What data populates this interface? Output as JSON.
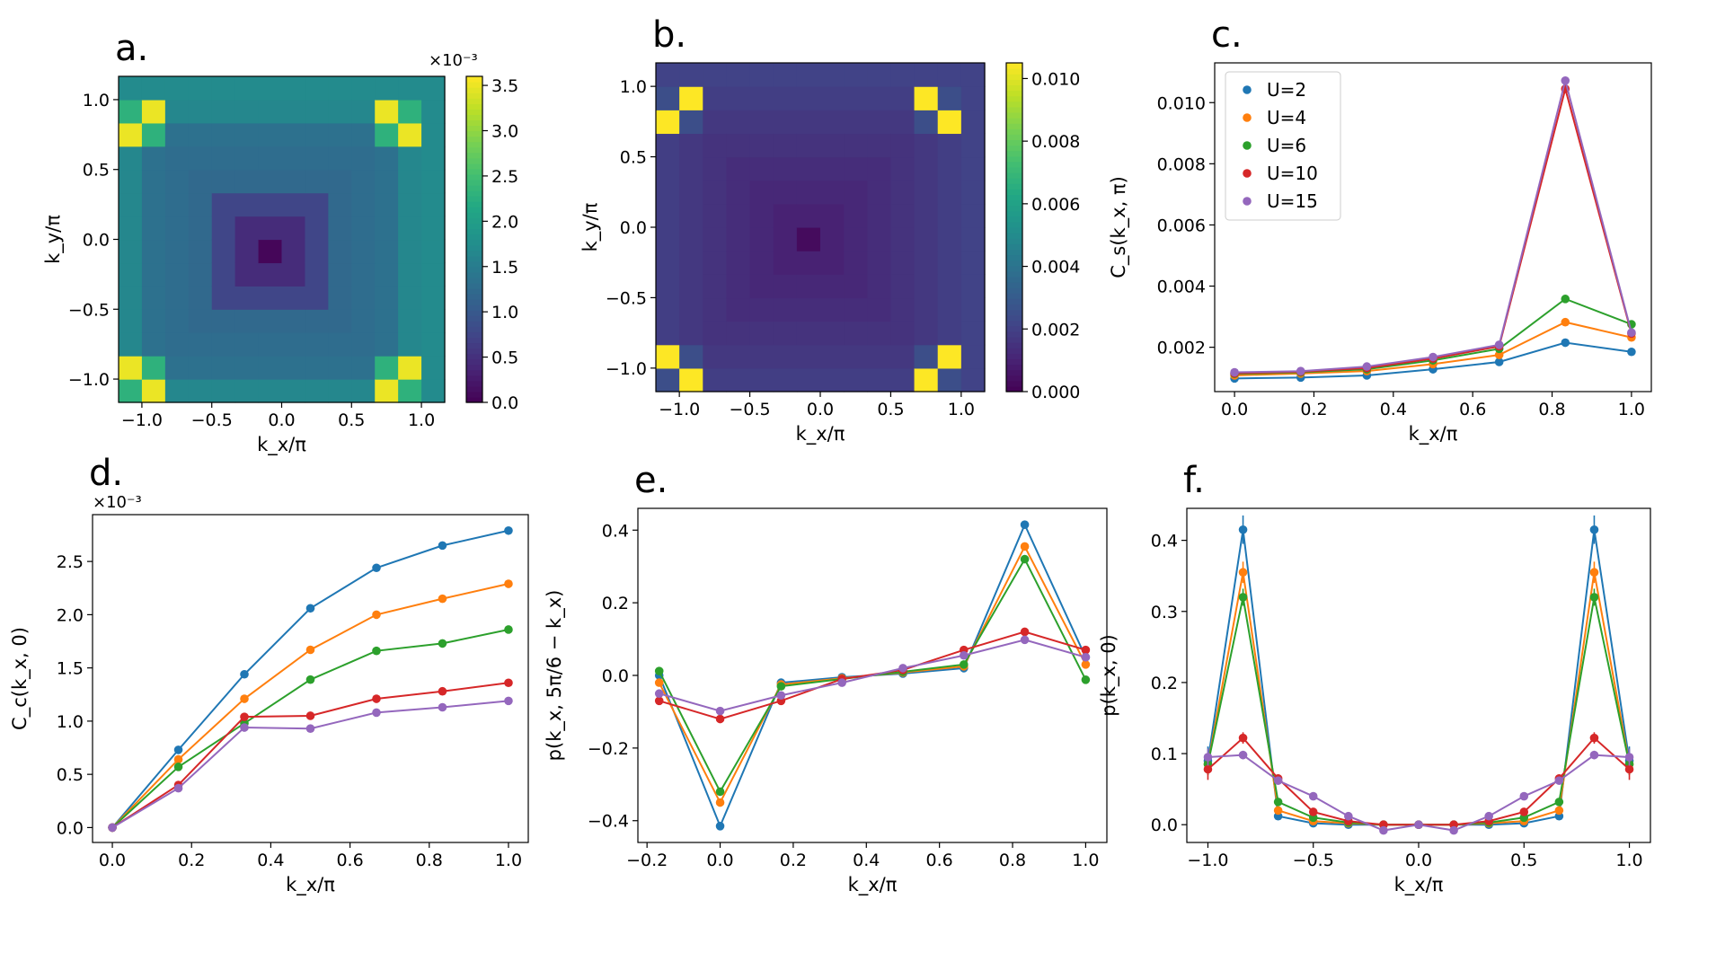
{
  "figure": {
    "background": "#ffffff",
    "series_colors": {
      "U=2": "#1f77b4",
      "U=4": "#ff7f0e",
      "U=6": "#2ca02c",
      "U=10": "#d62728",
      "U=15": "#9467bd"
    }
  },
  "chart_data": [
    {
      "id": "a",
      "type": "heatmap",
      "panel_label": "a.",
      "xlabel": "k_x/π",
      "ylabel": "k_y/π",
      "xticks": [
        "−1.0",
        "−0.5",
        "0.0",
        "0.5",
        "1.0"
      ],
      "yticks": [
        "−1.0",
        "−0.5",
        "0.0",
        "0.5",
        "1.0"
      ],
      "xlim": [
        -1.1667,
        1.1667
      ],
      "ylim": [
        -1.1667,
        1.1667
      ],
      "grid_cells": 14,
      "colorbar": {
        "exponent_label": "×10⁻³",
        "range": [
          0,
          3.6
        ],
        "ticks": [
          0.0,
          0.5,
          1.0,
          1.5,
          2.0,
          2.5,
          3.0,
          3.5
        ],
        "tick_labels": [
          "0.0",
          "0.5",
          "1.0",
          "1.5",
          "2.0",
          "2.5",
          "3.0",
          "3.5"
        ]
      },
      "model": "spin",
      "peak_value": 3.5
    },
    {
      "id": "b",
      "type": "heatmap",
      "panel_label": "b.",
      "xlabel": "k_x/π",
      "ylabel": "k_y/π",
      "xticks": [
        "−1.0",
        "−0.5",
        "0.0",
        "0.5",
        "1.0"
      ],
      "yticks": [
        "−1.0",
        "−0.5",
        "0.0",
        "0.5",
        "1.0"
      ],
      "xlim": [
        -1.1667,
        1.1667
      ],
      "ylim": [
        -1.1667,
        1.1667
      ],
      "grid_cells": 14,
      "colorbar": {
        "exponent_label": "",
        "range": [
          0,
          0.0105
        ],
        "ticks": [
          0.0,
          0.002,
          0.004,
          0.006,
          0.008,
          0.01
        ],
        "tick_labels": [
          "0.000",
          "0.002",
          "0.004",
          "0.006",
          "0.008",
          "0.010"
        ]
      },
      "model": "spin_sharp",
      "peak_value": 0.0105
    },
    {
      "id": "c",
      "type": "line",
      "panel_label": "c.",
      "xlabel": "k_x/π",
      "ylabel": "C_s(k_x, π)",
      "x": [
        0.0,
        0.1667,
        0.3333,
        0.5,
        0.6667,
        0.8333,
        1.0
      ],
      "xlim": [
        -0.05,
        1.05
      ],
      "ylim": [
        0.00055,
        0.0113
      ],
      "xticks": [
        0.0,
        0.2,
        0.4,
        0.6,
        0.8,
        1.0
      ],
      "xtick_labels": [
        "0.0",
        "0.2",
        "0.4",
        "0.6",
        "0.8",
        "1.0"
      ],
      "yticks": [
        0.002,
        0.004,
        0.006,
        0.008,
        0.01
      ],
      "ytick_labels": [
        "0.002",
        "0.004",
        "0.006",
        "0.008",
        "0.010"
      ],
      "legend": {
        "location": "upper-left",
        "entries": [
          "U=2",
          "U=4",
          "U=6",
          "U=10",
          "U=15"
        ]
      },
      "series": [
        {
          "name": "U=2",
          "values": [
            0.00098,
            0.00101,
            0.00108,
            0.00128,
            0.00152,
            0.00215,
            0.00185
          ]
        },
        {
          "name": "U=4",
          "values": [
            0.00108,
            0.00114,
            0.00122,
            0.00145,
            0.00175,
            0.00282,
            0.00232
          ]
        },
        {
          "name": "U=6",
          "values": [
            0.00113,
            0.00118,
            0.00128,
            0.00157,
            0.00195,
            0.00358,
            0.00275
          ]
        },
        {
          "name": "U=10",
          "values": [
            0.00115,
            0.0012,
            0.00132,
            0.00163,
            0.00203,
            0.01045,
            0.00245
          ]
        },
        {
          "name": "U=15",
          "values": [
            0.00118,
            0.00122,
            0.00137,
            0.00168,
            0.00208,
            0.01072,
            0.00248
          ]
        }
      ]
    },
    {
      "id": "d",
      "type": "line",
      "panel_label": "d.",
      "xlabel": "k_x/π",
      "ylabel": "C_c(k_x, 0)",
      "exponent_label": "×10⁻³",
      "x": [
        0.0,
        0.1667,
        0.3333,
        0.5,
        0.6667,
        0.8333,
        1.0
      ],
      "xlim": [
        -0.05,
        1.05
      ],
      "ylim": [
        -0.14,
        2.94
      ],
      "xticks": [
        0.0,
        0.2,
        0.4,
        0.6,
        0.8,
        1.0
      ],
      "xtick_labels": [
        "0.0",
        "0.2",
        "0.4",
        "0.6",
        "0.8",
        "1.0"
      ],
      "yticks": [
        0.0,
        0.5,
        1.0,
        1.5,
        2.0,
        2.5
      ],
      "ytick_labels": [
        "0.0",
        "0.5",
        "1.0",
        "1.5",
        "2.0",
        "2.5"
      ],
      "series": [
        {
          "name": "U=2",
          "values": [
            0.0,
            0.73,
            1.44,
            2.06,
            2.44,
            2.65,
            2.79
          ]
        },
        {
          "name": "U=4",
          "values": [
            0.0,
            0.64,
            1.21,
            1.67,
            2.0,
            2.15,
            2.29
          ]
        },
        {
          "name": "U=6",
          "values": [
            0.0,
            0.57,
            0.98,
            1.39,
            1.66,
            1.73,
            1.86
          ]
        },
        {
          "name": "U=10",
          "values": [
            0.0,
            0.4,
            1.04,
            1.05,
            1.21,
            1.28,
            1.36
          ]
        },
        {
          "name": "U=15",
          "values": [
            0.0,
            0.37,
            0.94,
            0.93,
            1.08,
            1.13,
            1.19
          ]
        }
      ]
    },
    {
      "id": "e",
      "type": "line",
      "panel_label": "e.",
      "xlabel": "k_x/π",
      "ylabel": "p(k_x, 5π/6 − k_x)",
      "x": [
        -0.1667,
        0.0,
        0.1667,
        0.3333,
        0.5,
        0.6667,
        0.8333,
        1.0
      ],
      "xlim": [
        -0.225,
        1.058
      ],
      "ylim": [
        -0.46,
        0.46
      ],
      "xticks": [
        -0.2,
        0.0,
        0.2,
        0.4,
        0.6,
        0.8,
        1.0
      ],
      "xtick_labels": [
        "−0.2",
        "0.0",
        "0.2",
        "0.4",
        "0.6",
        "0.8",
        "1.0"
      ],
      "yticks": [
        -0.4,
        -0.2,
        0.0,
        0.2,
        0.4
      ],
      "ytick_labels": [
        "−0.4",
        "−0.2",
        "0.0",
        "0.2",
        "0.4"
      ],
      "series": [
        {
          "name": "U=2",
          "values": [
            0.0,
            -0.415,
            -0.02,
            -0.005,
            0.005,
            0.02,
            0.415,
            0.05
          ]
        },
        {
          "name": "U=4",
          "values": [
            -0.02,
            -0.35,
            -0.025,
            -0.008,
            0.008,
            0.025,
            0.355,
            0.03
          ]
        },
        {
          "name": "U=6",
          "values": [
            0.012,
            -0.32,
            -0.03,
            -0.01,
            0.01,
            0.03,
            0.32,
            -0.012
          ]
        },
        {
          "name": "U=10",
          "values": [
            -0.07,
            -0.12,
            -0.07,
            -0.01,
            0.015,
            0.07,
            0.12,
            0.07
          ]
        },
        {
          "name": "U=15",
          "values": [
            -0.05,
            -0.098,
            -0.055,
            -0.02,
            0.02,
            0.055,
            0.098,
            0.05
          ]
        }
      ]
    },
    {
      "id": "f",
      "type": "line",
      "panel_label": "f.",
      "xlabel": "k_x/π",
      "ylabel": "p(k_x, 0)",
      "x": [
        -1.0,
        -0.8333,
        -0.6667,
        -0.5,
        -0.3333,
        -0.1667,
        0.0,
        0.1667,
        0.3333,
        0.5,
        0.6667,
        0.8333,
        1.0
      ],
      "xlim": [
        -1.1,
        1.1
      ],
      "ylim": [
        -0.025,
        0.445
      ],
      "xticks": [
        -1.0,
        -0.5,
        0.0,
        0.5,
        1.0
      ],
      "xtick_labels": [
        "−1.0",
        "−0.5",
        "0.0",
        "0.5",
        "1.0"
      ],
      "yticks": [
        0.0,
        0.1,
        0.2,
        0.3,
        0.4
      ],
      "ytick_labels": [
        "0.0",
        "0.1",
        "0.2",
        "0.3",
        "0.4"
      ],
      "error_bars": true,
      "series": [
        {
          "name": "U=2",
          "values": [
            0.09,
            0.415,
            0.012,
            0.002,
            0.0,
            0.0,
            0.0,
            0.0,
            0.0,
            0.002,
            0.012,
            0.415,
            0.09
          ],
          "errors": [
            0.02,
            0.02,
            0.004,
            0.002,
            0.002,
            0.002,
            0.002,
            0.002,
            0.002,
            0.002,
            0.004,
            0.02,
            0.02
          ]
        },
        {
          "name": "U=4",
          "values": [
            0.085,
            0.355,
            0.02,
            0.005,
            0.002,
            0.0,
            0.0,
            0.0,
            0.002,
            0.005,
            0.02,
            0.355,
            0.085
          ],
          "errors": [
            0.015,
            0.015,
            0.004,
            0.002,
            0.002,
            0.002,
            0.002,
            0.002,
            0.002,
            0.002,
            0.004,
            0.015,
            0.015
          ]
        },
        {
          "name": "U=6",
          "values": [
            0.085,
            0.32,
            0.032,
            0.01,
            0.003,
            0.0,
            0.0,
            0.0,
            0.003,
            0.01,
            0.032,
            0.32,
            0.085
          ],
          "errors": [
            0.015,
            0.012,
            0.004,
            0.002,
            0.002,
            0.002,
            0.002,
            0.002,
            0.002,
            0.002,
            0.004,
            0.012,
            0.015
          ]
        },
        {
          "name": "U=10",
          "values": [
            0.078,
            0.122,
            0.065,
            0.018,
            0.005,
            0.0,
            0.0,
            0.0,
            0.005,
            0.018,
            0.065,
            0.122,
            0.078
          ],
          "errors": [
            0.015,
            0.008,
            0.006,
            0.003,
            0.002,
            0.002,
            0.002,
            0.002,
            0.002,
            0.003,
            0.006,
            0.008,
            0.015
          ]
        },
        {
          "name": "U=15",
          "values": [
            0.095,
            0.098,
            0.062,
            0.04,
            0.012,
            -0.008,
            0.0,
            -0.008,
            0.012,
            0.04,
            0.062,
            0.098,
            0.095
          ],
          "errors": [
            0.012,
            0.006,
            0.005,
            0.004,
            0.003,
            0.003,
            0.002,
            0.003,
            0.003,
            0.004,
            0.005,
            0.006,
            0.012
          ]
        }
      ]
    }
  ]
}
